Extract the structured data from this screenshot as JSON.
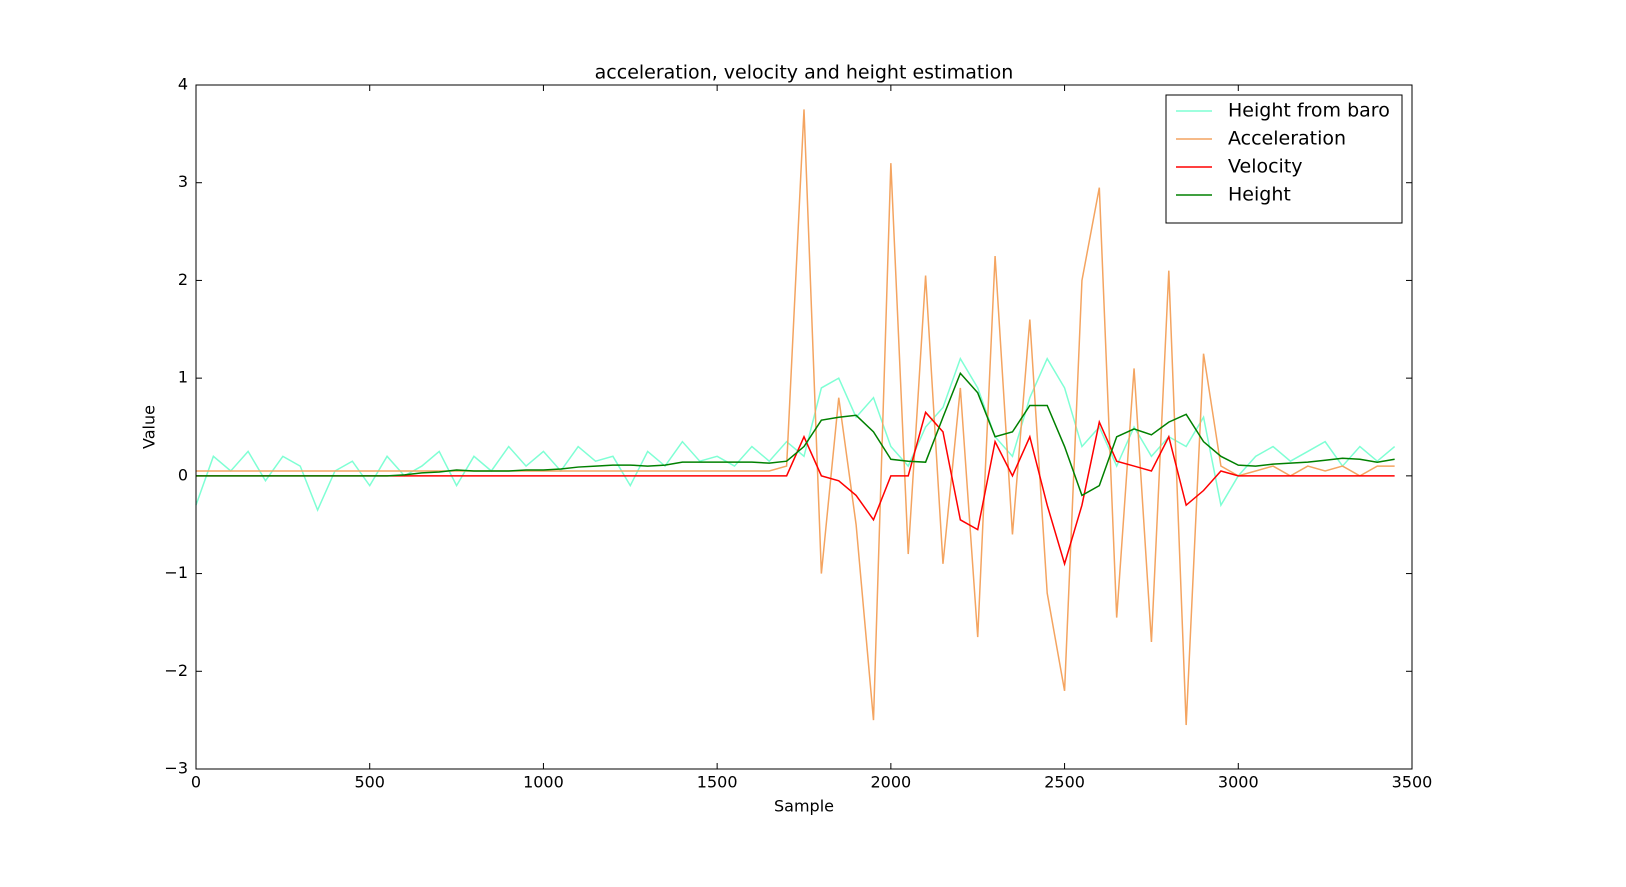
{
  "chart_data": {
    "type": "line",
    "title": "acceleration, velocity and height estimation",
    "x_label": "Sample",
    "y_label": "Value",
    "xlim": [
      0,
      3500
    ],
    "ylim": [
      -3,
      4
    ],
    "xticks": [
      0,
      500,
      1000,
      1500,
      2000,
      2500,
      3000,
      3500
    ],
    "yticks": [
      {
        "value": -3,
        "label": "−3"
      },
      {
        "value": -2,
        "label": "−2"
      },
      {
        "value": -1,
        "label": "−1"
      },
      0,
      1,
      2,
      3,
      4
    ],
    "grid": false,
    "legend": "upper right",
    "x": [
      0,
      50,
      100,
      150,
      200,
      250,
      300,
      350,
      400,
      450,
      500,
      550,
      600,
      650,
      700,
      750,
      800,
      850,
      900,
      950,
      1000,
      1050,
      1100,
      1150,
      1200,
      1250,
      1300,
      1350,
      1400,
      1450,
      1500,
      1550,
      1600,
      1650,
      1700,
      1750,
      1800,
      1850,
      1900,
      1950,
      2000,
      2050,
      2100,
      2150,
      2200,
      2250,
      2300,
      2350,
      2400,
      2450,
      2500,
      2550,
      2600,
      2650,
      2700,
      2750,
      2800,
      2850,
      2900,
      2950,
      3000,
      3050,
      3100,
      3150,
      3200,
      3250,
      3300,
      3350,
      3400,
      3450
    ],
    "series": [
      {
        "name": "Height from baro",
        "color": "#7fffd4",
        "values": [
          -0.3,
          0.2,
          0.05,
          0.25,
          -0.05,
          0.2,
          0.1,
          -0.35,
          0.05,
          0.15,
          -0.1,
          0.2,
          0.0,
          0.1,
          0.25,
          -0.1,
          0.2,
          0.05,
          0.3,
          0.1,
          0.25,
          0.05,
          0.3,
          0.15,
          0.2,
          -0.1,
          0.25,
          0.1,
          0.35,
          0.15,
          0.2,
          0.1,
          0.3,
          0.15,
          0.35,
          0.2,
          0.9,
          1.0,
          0.6,
          0.8,
          0.3,
          0.1,
          0.5,
          0.7,
          1.2,
          0.9,
          0.4,
          0.2,
          0.8,
          1.2,
          0.9,
          0.3,
          0.5,
          0.1,
          0.5,
          0.2,
          0.4,
          0.3,
          0.6,
          -0.3,
          0.0,
          0.2,
          0.3,
          0.15,
          0.25,
          0.35,
          0.1,
          0.3,
          0.15,
          0.3
        ]
      },
      {
        "name": "Acceleration",
        "color": "#f4a460",
        "values": [
          0.05,
          0.05,
          0.05,
          0.05,
          0.05,
          0.05,
          0.05,
          0.05,
          0.05,
          0.05,
          0.05,
          0.05,
          0.05,
          0.05,
          0.05,
          0.05,
          0.05,
          0.05,
          0.05,
          0.05,
          0.05,
          0.05,
          0.05,
          0.05,
          0.05,
          0.05,
          0.05,
          0.05,
          0.05,
          0.05,
          0.05,
          0.05,
          0.05,
          0.05,
          0.1,
          3.75,
          -1.0,
          0.8,
          -0.5,
          -2.5,
          3.2,
          -0.8,
          2.05,
          -0.9,
          0.9,
          -1.65,
          2.25,
          -0.6,
          1.6,
          -1.2,
          -2.2,
          2.0,
          2.95,
          -1.45,
          1.1,
          -1.7,
          2.1,
          -2.55,
          1.25,
          0.1,
          0.0,
          0.05,
          0.1,
          0.0,
          0.1,
          0.05,
          0.1,
          0.0,
          0.1,
          0.1
        ]
      },
      {
        "name": "Velocity",
        "color": "#ff0000",
        "values": [
          0,
          0,
          0,
          0,
          0,
          0,
          0,
          0,
          0,
          0,
          0,
          0,
          0,
          0,
          0,
          0,
          0,
          0,
          0,
          0,
          0,
          0,
          0,
          0,
          0,
          0,
          0,
          0,
          0,
          0,
          0,
          0,
          0,
          0,
          0,
          0.4,
          0.0,
          -0.05,
          -0.2,
          -0.45,
          0.0,
          0.0,
          0.65,
          0.45,
          -0.45,
          -0.55,
          0.35,
          0.0,
          0.4,
          -0.3,
          -0.9,
          -0.3,
          0.55,
          0.15,
          0.1,
          0.05,
          0.4,
          -0.3,
          -0.15,
          0.05,
          0,
          0,
          0,
          0,
          0,
          0,
          0,
          0,
          0,
          0
        ]
      },
      {
        "name": "Height",
        "color": "#008000",
        "values": [
          0,
          0,
          0,
          0,
          0,
          0,
          0,
          0,
          0,
          0,
          0,
          0,
          0.01,
          0.03,
          0.04,
          0.06,
          0.05,
          0.05,
          0.05,
          0.06,
          0.06,
          0.07,
          0.09,
          0.1,
          0.11,
          0.11,
          0.1,
          0.11,
          0.14,
          0.14,
          0.14,
          0.14,
          0.14,
          0.13,
          0.15,
          0.3,
          0.57,
          0.6,
          0.62,
          0.45,
          0.17,
          0.15,
          0.14,
          0.6,
          1.05,
          0.85,
          0.4,
          0.45,
          0.72,
          0.72,
          0.3,
          -0.2,
          -0.1,
          0.4,
          0.48,
          0.42,
          0.55,
          0.63,
          0.35,
          0.2,
          0.11,
          0.1,
          0.12,
          0.13,
          0.14,
          0.16,
          0.18,
          0.17,
          0.14,
          0.17
        ]
      }
    ]
  }
}
